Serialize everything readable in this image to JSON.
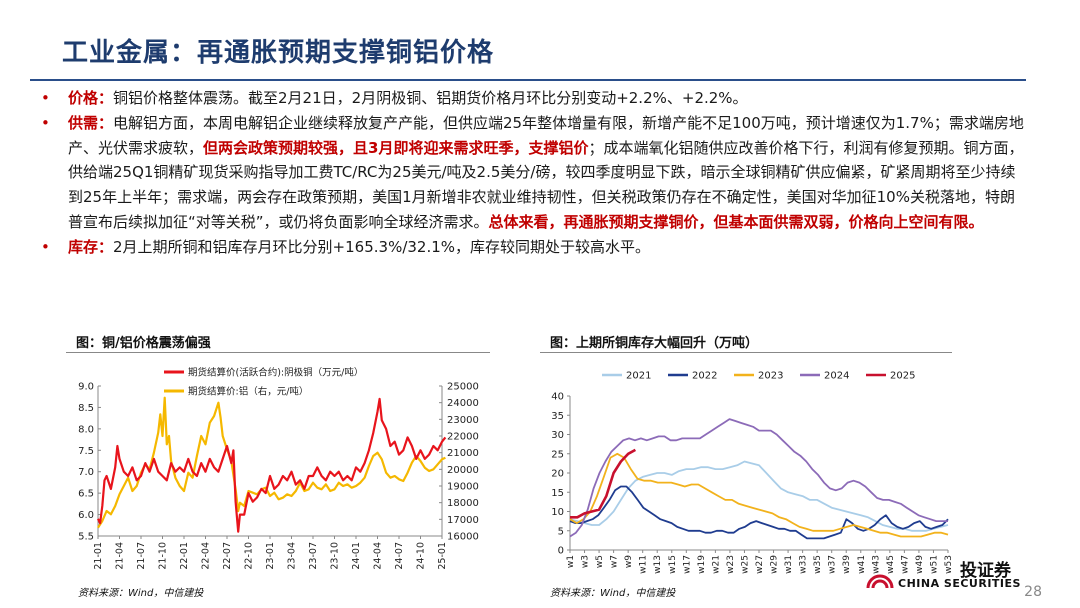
{
  "title": "工业金属：再通胀预期支撑铜铝价格",
  "bullets": [
    {
      "lead": "价格：",
      "segments": [
        {
          "text": "铜铝价格整体震荡。截至2月21日，2月阴极铜、铝期货价格月环比分别变动+2.2%、+2.2%。",
          "hl": false
        }
      ]
    },
    {
      "lead": "供需：",
      "segments": [
        {
          "text": "电解铝方面，本周电解铝企业继续释放复产产能，但供应端25年整体增量有限，新增产能不足100万吨，预计增速仅为1.7%；需求端房地产、光伏需求疲软，",
          "hl": false
        },
        {
          "text": "但两会政策预期较强，且3月即将迎来需求旺季，支撑铝价",
          "hl": true
        },
        {
          "text": "；成本端氧化铝随供应改善价格下行，利润有修复预期。铜方面，供给端25Q1铜精矿现货采购指导加工费TC/RC为25美元/吨及2.5美分/磅，较四季度明显下跌，暗示全球铜精矿供应偏紧，矿紧周期将至少持续到25年上半年；需求端，两会存在政策预期，美国1月新增非农就业维持韧性，但关税政策仍存在不确定性，美国对华加征10%关税落地，特朗普宣布后续拟加征“对等关税”，或仍将负面影响全球经济需求。",
          "hl": false
        },
        {
          "text": "总体来看，再通胀预期支撑铜价，但基本面供需双弱，价格向上空间有限。",
          "hl": true
        }
      ]
    },
    {
      "lead": "库存：",
      "segments": [
        {
          "text": "2月上期所铜和铝库存月环比分别+165.3%/32.1%，库存较同期处于较高水平。",
          "hl": false
        }
      ]
    }
  ],
  "left_panel": {
    "heading": "图：铜/铝价格震荡偏强",
    "source": "资料来源：Wind，中信建投"
  },
  "right_panel": {
    "heading": "图：上期所铜库存大幅回升（万吨）",
    "source": "资料来源：Wind，中信建投"
  },
  "page_number": "28",
  "logo": {
    "zh": "投证券",
    "en": "CHINA SECURITIES"
  },
  "colors": {
    "copper": "#e8141c",
    "aluminum": "#f5b800",
    "y2021": "#a9cde8",
    "y2022": "#1f3c8f",
    "y2023": "#f2b21c",
    "y2024": "#8c6bb8",
    "y2025": "#c8102e",
    "title": "#1e3c6e",
    "highlight": "#c00000"
  },
  "chart_data": [
    {
      "type": "line",
      "title": "",
      "legend_position": "top-left",
      "grid": false,
      "x_ticks": [
        "21-01",
        "21-04",
        "21-07",
        "21-10",
        "22-01",
        "22-04",
        "22-07",
        "22-10",
        "23-01",
        "23-04",
        "23-07",
        "23-10",
        "24-01",
        "24-04",
        "24-07",
        "24-10",
        "25-01"
      ],
      "ylim_left": [
        5.5,
        9.0
      ],
      "yticks_left": [
        "5.5",
        "6.0",
        "6.5",
        "7.0",
        "7.5",
        "8.0",
        "8.5",
        "9.0"
      ],
      "ylim_right": [
        16000,
        25000
      ],
      "yticks_right": [
        "16000",
        "17000",
        "18000",
        "19000",
        "20000",
        "21000",
        "22000",
        "23000",
        "24000",
        "25000"
      ],
      "series": [
        {
          "name": "期货结算价(活跃合约):阴极铜（万元/吨）",
          "axis": "left",
          "points": [
            [
              0,
              5.9
            ],
            [
              0.5,
              5.8
            ],
            [
              1,
              6.2
            ],
            [
              1.5,
              6.8
            ],
            [
              2,
              6.9
            ],
            [
              3,
              6.6
            ],
            [
              4,
              7.1
            ],
            [
              4.5,
              7.6
            ],
            [
              5,
              7.3
            ],
            [
              6,
              7.0
            ],
            [
              7,
              6.9
            ],
            [
              8,
              7.1
            ],
            [
              9,
              6.8
            ],
            [
              10,
              6.9
            ],
            [
              11,
              7.2
            ],
            [
              12,
              7.0
            ],
            [
              13,
              7.3
            ],
            [
              14,
              7.0
            ],
            [
              15,
              6.9
            ],
            [
              16,
              6.8
            ],
            [
              17,
              7.2
            ],
            [
              18,
              7.0
            ],
            [
              19,
              7.1
            ],
            [
              20,
              7.0
            ],
            [
              21,
              7.3
            ],
            [
              22,
              7.0
            ],
            [
              23,
              6.9
            ],
            [
              24,
              7.2
            ],
            [
              25,
              7.0
            ],
            [
              26,
              7.3
            ],
            [
              27,
              7.1
            ],
            [
              28,
              7.0
            ],
            [
              29,
              7.3
            ],
            [
              30,
              7.6
            ],
            [
              31,
              7.2
            ],
            [
              31.5,
              7.5
            ],
            [
              32,
              6.3
            ],
            [
              32.6,
              5.6
            ],
            [
              33,
              6.0
            ],
            [
              34,
              6.0
            ],
            [
              35,
              6.5
            ],
            [
              36,
              6.3
            ],
            [
              37,
              6.4
            ],
            [
              38,
              6.6
            ],
            [
              39,
              6.5
            ],
            [
              40,
              6.9
            ],
            [
              41,
              6.6
            ],
            [
              42,
              6.7
            ],
            [
              43,
              6.9
            ],
            [
              44,
              6.8
            ],
            [
              45,
              7.0
            ],
            [
              46,
              6.7
            ],
            [
              47,
              6.8
            ],
            [
              48,
              6.6
            ],
            [
              49,
              6.9
            ],
            [
              50,
              6.9
            ],
            [
              51,
              7.1
            ],
            [
              52,
              6.9
            ],
            [
              53,
              6.8
            ],
            [
              54,
              7.0
            ],
            [
              55,
              6.9
            ],
            [
              56,
              7.0
            ],
            [
              57,
              6.8
            ],
            [
              58,
              6.9
            ],
            [
              59,
              6.8
            ],
            [
              60,
              7.1
            ],
            [
              61,
              7.0
            ],
            [
              62,
              7.2
            ],
            [
              63,
              7.5
            ],
            [
              64,
              7.9
            ],
            [
              65,
              8.4
            ],
            [
              65.5,
              8.7
            ],
            [
              66,
              8.2
            ],
            [
              67,
              8.0
            ],
            [
              68,
              7.6
            ],
            [
              69,
              7.7
            ],
            [
              70,
              7.4
            ],
            [
              71,
              7.5
            ],
            [
              72,
              7.8
            ],
            [
              73,
              7.6
            ],
            [
              74,
              7.3
            ],
            [
              75,
              7.5
            ],
            [
              76,
              7.3
            ],
            [
              77,
              7.4
            ],
            [
              78,
              7.6
            ],
            [
              79,
              7.5
            ],
            [
              80,
              7.7
            ],
            [
              80.8,
              7.8
            ]
          ]
        },
        {
          "name": "期货结算价:铝（右，元/吨）",
          "axis": "right",
          "points": [
            [
              0,
              16500
            ],
            [
              1,
              16900
            ],
            [
              2,
              17500
            ],
            [
              3,
              17300
            ],
            [
              4,
              17800
            ],
            [
              5,
              18500
            ],
            [
              6,
              19000
            ],
            [
              7,
              19500
            ],
            [
              8,
              18700
            ],
            [
              9,
              19000
            ],
            [
              10,
              19800
            ],
            [
              11,
              20300
            ],
            [
              12,
              20000
            ],
            [
              13,
              21000
            ],
            [
              14,
              22200
            ],
            [
              14.5,
              23300
            ],
            [
              15,
              22000
            ],
            [
              15.5,
              24300
            ],
            [
              16,
              21500
            ],
            [
              16.5,
              22000
            ],
            [
              17,
              20500
            ],
            [
              18,
              19500
            ],
            [
              19,
              19000
            ],
            [
              20,
              18700
            ],
            [
              21,
              19800
            ],
            [
              22,
              19500
            ],
            [
              23,
              20800
            ],
            [
              24,
              22000
            ],
            [
              25,
              21500
            ],
            [
              26,
              22800
            ],
            [
              27,
              23200
            ],
            [
              28,
              24000
            ],
            [
              28.5,
              23100
            ],
            [
              29,
              22000
            ],
            [
              30,
              21200
            ],
            [
              31,
              20500
            ],
            [
              32,
              18800
            ],
            [
              32.6,
              17500
            ],
            [
              33,
              18000
            ],
            [
              34,
              17800
            ],
            [
              35,
              18700
            ],
            [
              36,
              18600
            ],
            [
              37,
              18500
            ],
            [
              38,
              18800
            ],
            [
              39,
              18900
            ],
            [
              40,
              18400
            ],
            [
              41,
              18600
            ],
            [
              42,
              18200
            ],
            [
              43,
              18300
            ],
            [
              44,
              18500
            ],
            [
              45,
              18400
            ],
            [
              46,
              18700
            ],
            [
              47,
              19200
            ],
            [
              48,
              18700
            ],
            [
              49,
              18800
            ],
            [
              50,
              19200
            ],
            [
              51,
              18900
            ],
            [
              52,
              18800
            ],
            [
              53,
              19100
            ],
            [
              54,
              18700
            ],
            [
              55,
              18800
            ],
            [
              56,
              19200
            ],
            [
              57,
              19000
            ],
            [
              58,
              19100
            ],
            [
              59,
              18900
            ],
            [
              60,
              19000
            ],
            [
              61,
              19200
            ],
            [
              62,
              19500
            ],
            [
              63,
              20200
            ],
            [
              64,
              20800
            ],
            [
              65,
              21000
            ],
            [
              66,
              20600
            ],
            [
              67,
              19800
            ],
            [
              68,
              19500
            ],
            [
              69,
              19600
            ],
            [
              70,
              19400
            ],
            [
              71,
              19300
            ],
            [
              72,
              19800
            ],
            [
              73,
              20400
            ],
            [
              74,
              20800
            ],
            [
              75,
              20500
            ],
            [
              76,
              20100
            ],
            [
              77,
              19900
            ],
            [
              78,
              20000
            ],
            [
              79,
              20300
            ],
            [
              80,
              20600
            ],
            [
              80.8,
              20700
            ]
          ]
        }
      ]
    },
    {
      "type": "line",
      "title": "",
      "legend_position": "top",
      "grid": false,
      "x_ticks": [
        "w1",
        "w3",
        "w5",
        "w7",
        "w9",
        "w11",
        "w13",
        "w15",
        "w17",
        "w19",
        "w21",
        "w23",
        "w25",
        "w27",
        "w29",
        "w31",
        "w33",
        "w35",
        "w37",
        "w39",
        "w41",
        "w43",
        "w45",
        "w47",
        "w49",
        "w51",
        "w53"
      ],
      "ylim": [
        0,
        40
      ],
      "yticks": [
        "0",
        "5",
        "10",
        "15",
        "20",
        "25",
        "30",
        "35",
        "40"
      ],
      "series": [
        {
          "name": "2021",
          "values": [
            8,
            7.5,
            7,
            6.5,
            6.5,
            8,
            10,
            13,
            16,
            18,
            19,
            19.5,
            20,
            20,
            19.5,
            20.5,
            21,
            21,
            21.5,
            21.5,
            21,
            21,
            21.5,
            22,
            23,
            22.5,
            22,
            20,
            18,
            16,
            15,
            14.5,
            14,
            13,
            13,
            12,
            11,
            10.5,
            10,
            9.5,
            9,
            8.5,
            7.5,
            6.5,
            6,
            5.5,
            5.5,
            5,
            5,
            5,
            5.5,
            6,
            6.5
          ]
        },
        {
          "name": "2022",
          "values": [
            7.5,
            7,
            7,
            7.5,
            8,
            9,
            11,
            13,
            15.5,
            16.5,
            16.5,
            15,
            13,
            11,
            10,
            9,
            8,
            7.5,
            7,
            6,
            5.5,
            5,
            5,
            5,
            4.5,
            4.5,
            5,
            5,
            4.5,
            4.5,
            5.5,
            6,
            7,
            7.5,
            7,
            6.5,
            6,
            5.5,
            5.5,
            5,
            5,
            4,
            3,
            3,
            3,
            3,
            3.5,
            4,
            4.5,
            8,
            7,
            5.5,
            5,
            5.5,
            6.5,
            8,
            9,
            7,
            6,
            5.5,
            6,
            7,
            7.5,
            6,
            5.5,
            6,
            6.5,
            8
          ]
        },
        {
          "name": "2023",
          "values": [
            8,
            7,
            8,
            10,
            14,
            19,
            24,
            25,
            24,
            21,
            18.5,
            18,
            18,
            17.5,
            17.5,
            17.5,
            17,
            16.5,
            17,
            17,
            16,
            15,
            14,
            13,
            13,
            12,
            11.5,
            11,
            10.5,
            10,
            9.5,
            8.5,
            8,
            7,
            6,
            5.5,
            5,
            5,
            5,
            5,
            5.5,
            6,
            6.5,
            6,
            5.5,
            5,
            4.5,
            4.5,
            4,
            3.5,
            3.5,
            3.5,
            3.5,
            4,
            4.5,
            4.5,
            4
          ]
        },
        {
          "name": "2024",
          "values": [
            3.5,
            4.5,
            6.5,
            10.5,
            16,
            20,
            23,
            25.5,
            27,
            28.5,
            29,
            28.5,
            29,
            28.5,
            29,
            29.5,
            29.5,
            28.5,
            28.5,
            29,
            29,
            29,
            29,
            30,
            31,
            32,
            33,
            34,
            33.5,
            33,
            32.5,
            32,
            31,
            31,
            31,
            30,
            28.5,
            27,
            25.5,
            24.5,
            23,
            21,
            19.5,
            17.5,
            16,
            15.5,
            16,
            17.5,
            18,
            17.5,
            16.5,
            15,
            13.5,
            13,
            13,
            12.5,
            12,
            11,
            10,
            9,
            8.5,
            8,
            7.5,
            7.5,
            7.5
          ]
        },
        {
          "name": "2025",
          "values": [
            8.5,
            8.5,
            9.5,
            10,
            10.5,
            14,
            20,
            23,
            25,
            26
          ]
        }
      ]
    }
  ]
}
